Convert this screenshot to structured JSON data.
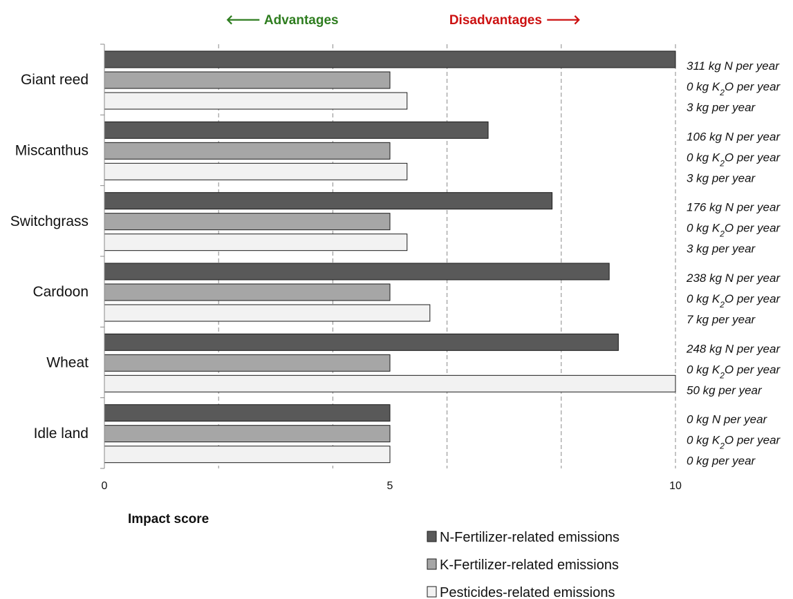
{
  "chart_data": {
    "type": "bar",
    "orientation": "horizontal",
    "categories": [
      "Giant reed",
      "Miscanthus",
      "Switchgrass",
      "Cardoon",
      "Wheat",
      "Idle land"
    ],
    "series": [
      {
        "name": "N-Fertilizer-related emissions",
        "color": "#595959",
        "values": [
          10.0,
          6.72,
          7.84,
          8.84,
          9.0,
          5.0
        ],
        "labels": [
          "311 kg N per year",
          "106 kg N per year",
          "176 kg N per year",
          "238 kg N per year",
          "248 kg N per year",
          "0 kg N per year"
        ]
      },
      {
        "name": "K-Fertilizer-related emissions",
        "color": "#a6a6a6",
        "values": [
          5.0,
          5.0,
          5.0,
          5.0,
          5.0,
          5.0
        ],
        "labels": [
          "0 kg K2O per year",
          "0 kg K2O per year",
          "0 kg K2O per year",
          "0 kg K2O per year",
          "0 kg K2O per year",
          "0 kg K2O per year"
        ]
      },
      {
        "name": "Pesticides-related emissions",
        "color": "#f2f2f2",
        "values": [
          5.3,
          5.3,
          5.3,
          5.7,
          10.0,
          5.0
        ],
        "labels": [
          "3 kg per year",
          "3 kg per year",
          "3 kg per year",
          "7 kg per year",
          "50 kg per year",
          "0 kg per year"
        ]
      }
    ],
    "xlabel": "Impact score",
    "xlim": [
      0,
      10
    ],
    "xticks": [
      0,
      5,
      10
    ],
    "gridlines": [
      2,
      4,
      6,
      8,
      10
    ],
    "advantages_label": "🡐 Advantages",
    "disadvantages_label": "Disadvantages 🡒",
    "advantages_color": "#2e7d1f",
    "disadvantages_color": "#cc1111",
    "legend_position": "bottom-right"
  }
}
